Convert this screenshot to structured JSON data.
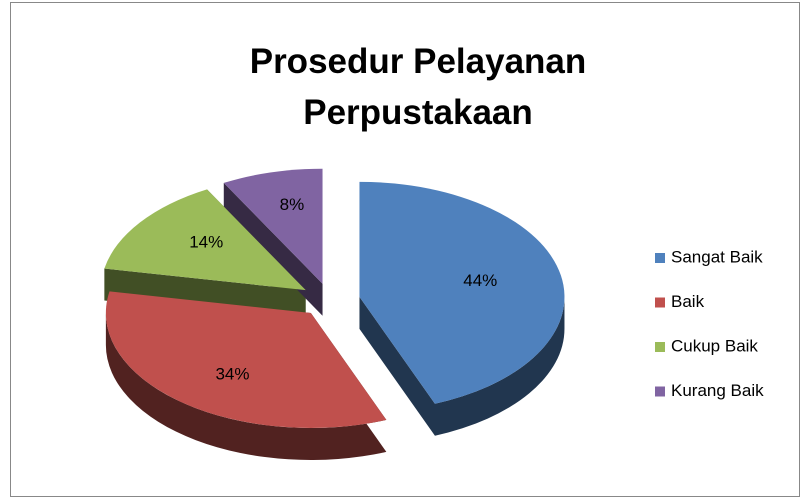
{
  "chart_data": {
    "type": "pie",
    "title": "Prosedur Pelayanan Perpustakaan",
    "categories": [
      "Sangat Baik",
      "Baik",
      "Cukup Baik",
      "Kurang Baik"
    ],
    "values": [
      44,
      34,
      14,
      8
    ],
    "value_labels": [
      "44%",
      "34%",
      "14%",
      "8%"
    ],
    "colors": [
      "#4f81bd",
      "#c0504d",
      "#9bbb59",
      "#8064a2"
    ],
    "legend": "right"
  }
}
